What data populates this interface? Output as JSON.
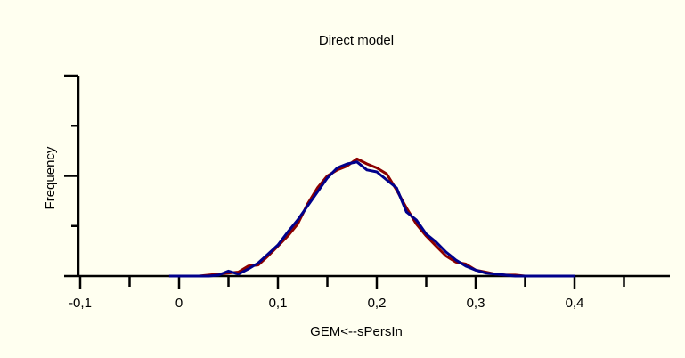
{
  "chart_data": {
    "type": "line",
    "title": "Direct model",
    "xlabel": "GEM<--sPersIn",
    "ylabel": "Frequency",
    "x": [
      -0.01,
      0.0,
      0.01,
      0.02,
      0.03,
      0.04,
      0.05,
      0.06,
      0.07,
      0.08,
      0.09,
      0.1,
      0.11,
      0.12,
      0.13,
      0.14,
      0.15,
      0.16,
      0.17,
      0.18,
      0.19,
      0.2,
      0.21,
      0.22,
      0.23,
      0.24,
      0.25,
      0.26,
      0.27,
      0.28,
      0.29,
      0.3,
      0.31,
      0.32,
      0.33,
      0.34,
      0.35,
      0.36,
      0.37,
      0.38,
      0.39,
      0.4
    ],
    "series": [
      {
        "color": "#8b0000",
        "values": [
          0,
          0,
          0,
          0,
          1,
          2,
          3,
          4,
          10,
          11,
          20,
          30,
          40,
          52,
          72,
          88,
          100,
          106,
          110,
          117,
          112,
          108,
          102,
          86,
          68,
          52,
          40,
          30,
          20,
          14,
          12,
          6,
          4,
          2,
          1,
          1,
          0,
          0,
          0,
          0,
          0,
          0
        ]
      },
      {
        "color": "#00008b",
        "values": [
          0,
          0,
          0,
          0,
          0,
          1,
          5,
          2,
          7,
          13,
          22,
          31,
          44,
          56,
          70,
          84,
          98,
          108,
          112,
          114,
          106,
          104,
          96,
          88,
          64,
          56,
          42,
          34,
          24,
          16,
          10,
          6,
          3,
          2,
          1,
          0,
          0,
          0,
          0,
          0,
          0,
          0
        ]
      }
    ],
    "xlim": [
      -0.1,
      0.5
    ],
    "xticks": [
      {
        "value": -0.1,
        "label": "-0,1"
      },
      0,
      {
        "value": 0.1,
        "label": "0,1"
      },
      {
        "value": 0.2,
        "label": "0,2"
      },
      {
        "value": 0.3,
        "label": "0,3"
      },
      {
        "value": 0.4,
        "label": "0,4"
      }
    ],
    "xminorticks": [
      -0.05,
      0.05,
      0.15,
      0.25,
      0.35,
      0.45
    ],
    "ylim": [
      0,
      200
    ],
    "yticks": [
      0,
      100,
      200
    ],
    "yminorticks": [
      50,
      150
    ]
  }
}
